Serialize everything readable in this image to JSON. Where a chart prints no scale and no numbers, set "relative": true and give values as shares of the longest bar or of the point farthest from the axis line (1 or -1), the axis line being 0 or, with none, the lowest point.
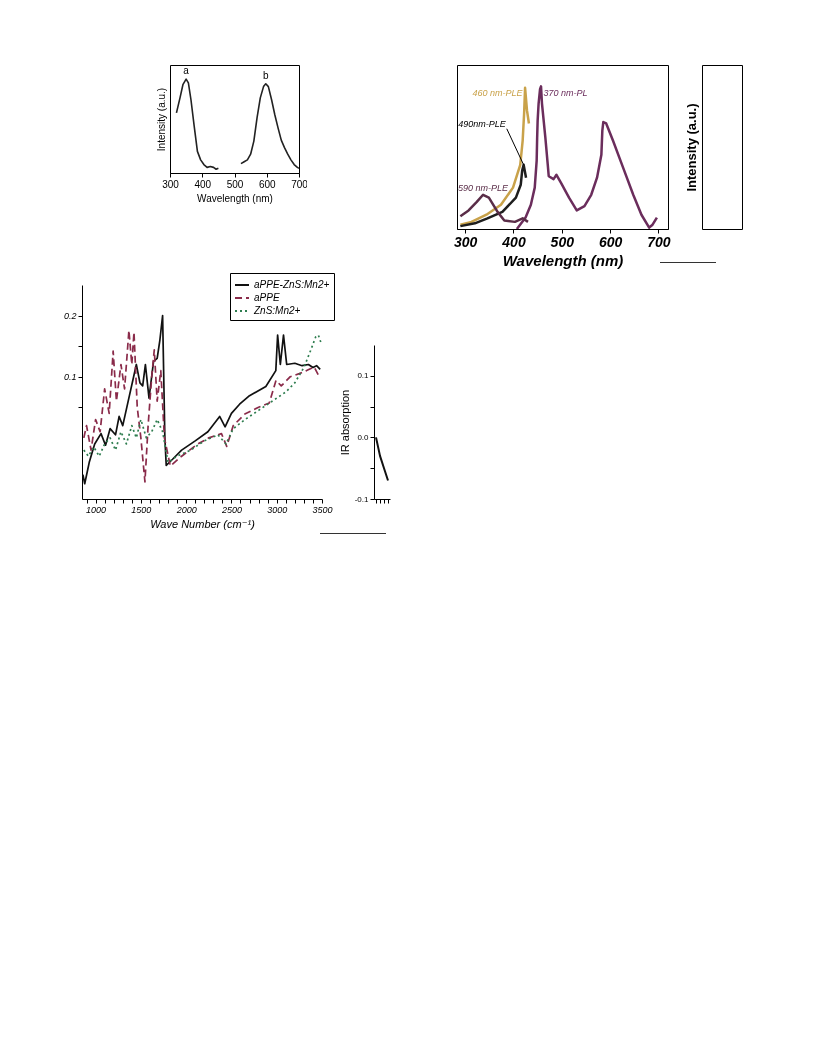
{
  "chart_data": [
    {
      "type": "line",
      "xlabel": "Wavelength (nm)",
      "ylabel": "Intensity (a.u.)",
      "relative": true,
      "xlim": [
        300,
        700
      ],
      "xticks": [
        300,
        400,
        500,
        600,
        700
      ],
      "series": [
        {
          "name": "a",
          "color": "#222222",
          "x": [
            320,
            331,
            340,
            350,
            357,
            365,
            375,
            385,
            395,
            405,
            415,
            425,
            435,
            443,
            450
          ],
          "values": [
            0.64,
            0.8,
            0.94,
            1.0,
            0.96,
            0.78,
            0.5,
            0.23,
            0.14,
            0.09,
            0.06,
            0.07,
            0.06,
            0.04,
            0.05
          ]
        },
        {
          "name": "b",
          "color": "#222222",
          "x": [
            520,
            530,
            540,
            550,
            560,
            570,
            580,
            590,
            597,
            605,
            615,
            625,
            635,
            645,
            655,
            665,
            675,
            685,
            695,
            700
          ],
          "values": [
            0.1,
            0.12,
            0.14,
            0.2,
            0.34,
            0.59,
            0.8,
            0.92,
            0.95,
            0.92,
            0.78,
            0.62,
            0.48,
            0.35,
            0.27,
            0.2,
            0.14,
            0.09,
            0.06,
            0.05
          ]
        }
      ]
    },
    {
      "type": "line",
      "xlabel": "Wavelength (nm)",
      "relative": true,
      "xlim": [
        283,
        720
      ],
      "xticks": [
        300,
        400,
        500,
        600,
        700
      ],
      "series": [
        {
          "name": "370 nm-PL",
          "color": "#6b2d5c",
          "x": [
            407,
            425,
            436,
            444,
            448,
            449,
            450,
            452,
            455,
            457,
            459,
            466,
            471,
            473,
            483,
            489,
            499,
            515,
            531,
            547,
            561,
            573,
            582,
            584,
            586,
            592,
            606,
            627,
            648,
            665,
            681,
            688,
            697
          ],
          "values": [
            0,
            0.08,
            0.17,
            0.29,
            0.48,
            0.64,
            0.76,
            0.88,
            0.98,
            1.0,
            0.88,
            0.64,
            0.45,
            0.37,
            0.35,
            0.38,
            0.32,
            0.22,
            0.13,
            0.16,
            0.24,
            0.36,
            0.52,
            0.69,
            0.75,
            0.74,
            0.62,
            0.43,
            0.24,
            0.1,
            0.01,
            0.03,
            0.08
          ]
        },
        {
          "name": "460 nm-PLE",
          "color": "#c9a24a",
          "x": [
            290,
            313,
            344,
            374,
            399,
            414,
            419,
            422,
            424,
            428,
            432
          ],
          "values": [
            0.03,
            0.05,
            0.1,
            0.17,
            0.29,
            0.45,
            0.62,
            0.81,
            0.99,
            0.83,
            0.74
          ]
        },
        {
          "name": "490nm-PLE",
          "color": "#1e1e1e",
          "x": [
            290,
            320,
            346,
            377,
            405,
            415,
            418,
            421,
            426
          ],
          "values": [
            0.02,
            0.04,
            0.075,
            0.12,
            0.22,
            0.31,
            0.41,
            0.45,
            0.36
          ]
        },
        {
          "name": "590 nm-PLE",
          "color": "#5a2d48",
          "x": [
            290,
            307,
            324,
            337,
            349,
            367,
            381,
            403,
            419,
            430
          ],
          "values": [
            0.09,
            0.13,
            0.19,
            0.24,
            0.22,
            0.12,
            0.06,
            0.05,
            0.075,
            0.05
          ]
        }
      ]
    },
    {
      "type": "other",
      "ylabel": "Intensity (a.u.)"
    },
    {
      "type": "line",
      "xlabel": "Wave Number (cm⁻¹)",
      "xlim": [
        850,
        3500
      ],
      "xticks": [
        {
          "value": 900,
          "label": null
        },
        1000,
        {
          "value": 1100,
          "label": null
        },
        {
          "value": 1200,
          "label": null
        },
        {
          "value": 1300,
          "label": null
        },
        {
          "value": 1400,
          "label": null
        },
        1500,
        {
          "value": 1600,
          "label": null
        },
        {
          "value": 1700,
          "label": null
        },
        {
          "value": 1800,
          "label": null
        },
        {
          "value": 1900,
          "label": null
        },
        2000,
        {
          "value": 2100,
          "label": null
        },
        {
          "value": 2200,
          "label": null
        },
        {
          "value": 2300,
          "label": null
        },
        {
          "value": 2400,
          "label": null
        },
        2500,
        {
          "value": 2600,
          "label": null
        },
        {
          "value": 2700,
          "label": null
        },
        {
          "value": 2800,
          "label": null
        },
        {
          "value": 2900,
          "label": null
        },
        3000,
        {
          "value": 3100,
          "label": null
        },
        {
          "value": 3200,
          "label": null
        },
        {
          "value": 3300,
          "label": null
        },
        {
          "value": 3400,
          "label": null
        },
        3500
      ],
      "ylim": [
        -0.1,
        0.25
      ],
      "yticks": [
        {
          "value": 0.05,
          "label": null
        },
        0.1,
        {
          "value": 0.15,
          "label": null
        },
        0.2
      ],
      "legend": "top right",
      "series": [
        {
          "name": "aPPE-ZnS:Mn2+",
          "color": "#111111",
          "line_style": "solid",
          "x": [
            860,
            880,
            930,
            990,
            1060,
            1110,
            1160,
            1220,
            1260,
            1300,
            1360,
            1420,
            1450,
            1490,
            1520,
            1550,
            1590,
            1640,
            1680,
            1710,
            1740,
            1765,
            1780,
            1850,
            1950,
            2100,
            2240,
            2370,
            2430,
            2500,
            2590,
            2690,
            2880,
            2990,
            3010,
            3040,
            3075,
            3110,
            3200,
            3280,
            3350,
            3400,
            3440,
            3480
          ],
          "values": [
            -0.06,
            -0.075,
            -0.04,
            -0.01,
            0.007,
            -0.012,
            0.015,
            0.005,
            0.035,
            0.02,
            0.06,
            0.1,
            0.12,
            0.09,
            0.085,
            0.12,
            0.065,
            0.125,
            0.13,
            0.16,
            0.2,
            0.0,
            -0.045,
            -0.035,
            -0.02,
            -0.005,
            0.01,
            0.035,
            0.018,
            0.04,
            0.055,
            0.068,
            0.084,
            0.11,
            0.168,
            0.12,
            0.168,
            0.12,
            0.122,
            0.118,
            0.12,
            0.115,
            0.118,
            0.112
          ]
        },
        {
          "name": "aPPE",
          "color": "#8a2b4a",
          "line_style": "dashed",
          "x": [
            870,
            900,
            950,
            1000,
            1050,
            1100,
            1150,
            1194,
            1230,
            1280,
            1320,
            1368,
            1400,
            1424,
            1460,
            1500,
            1545,
            1580,
            1620,
            1648,
            1680,
            1720,
            1760,
            1825,
            1950,
            2118,
            2250,
            2390,
            2448,
            2520,
            2648,
            2800,
            2918,
            2992,
            3050,
            3150,
            3250,
            3330,
            3413,
            3470
          ],
          "values": [
            0.0,
            0.02,
            -0.02,
            0.03,
            0.01,
            0.08,
            0.04,
            0.142,
            0.06,
            0.12,
            0.08,
            0.176,
            0.12,
            0.173,
            0.05,
            0.0,
            -0.072,
            0.02,
            0.1,
            0.144,
            0.06,
            0.11,
            0.0,
            -0.046,
            -0.03,
            -0.011,
            0.0,
            0.007,
            -0.014,
            0.02,
            0.039,
            0.05,
            0.057,
            0.094,
            0.085,
            0.1,
            0.105,
            0.11,
            0.116,
            0.1
          ]
        },
        {
          "name": "ZnS:Mn2+",
          "color": "#2e7d4f",
          "line_style": "dotted",
          "x": [
            870,
            920,
            980,
            1040,
            1100,
            1160,
            1220,
            1280,
            1340,
            1400,
            1450,
            1500,
            1560,
            1620,
            1680,
            1740,
            1800,
            1900,
            2050,
            2200,
            2350,
            2440,
            2520,
            2650,
            2800,
            2950,
            3100,
            3200,
            3300,
            3380,
            3430,
            3460,
            3490
          ],
          "values": [
            -0.02,
            -0.03,
            -0.015,
            -0.03,
            -0.01,
            0.0,
            -0.02,
            0.01,
            -0.01,
            0.02,
            0.0,
            0.03,
            0.0,
            0.01,
            0.03,
            0.01,
            -0.04,
            -0.03,
            -0.02,
            -0.005,
            0.005,
            -0.01,
            0.015,
            0.03,
            0.045,
            0.06,
            0.075,
            0.09,
            0.115,
            0.145,
            0.165,
            0.168,
            0.155
          ]
        }
      ]
    },
    {
      "type": "line",
      "ylabel": "IR absorption",
      "categories": [
        null,
        null,
        null,
        null
      ],
      "ylim": [
        -0.1,
        0.15
      ],
      "yticks": [
        {
          "value": -0.1,
          "label": "-0.1"
        },
        {
          "value": -0.05,
          "label": null
        },
        {
          "value": 0,
          "label": "0.0"
        },
        {
          "value": 0.05,
          "label": null
        },
        {
          "value": 0.1,
          "label": "0.1"
        }
      ],
      "series": [
        {
          "color": "#111111",
          "values": [
            0.0,
            -0.03,
            -0.05,
            -0.07
          ]
        }
      ]
    }
  ]
}
